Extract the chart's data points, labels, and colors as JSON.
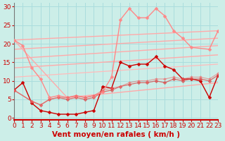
{
  "background_color": "#cceee8",
  "grid_color": "#aadddd",
  "xlabel": "Vent moyen/en rafales ( km/h )",
  "xlabel_color": "#cc0000",
  "xlabel_fontsize": 7.5,
  "tick_color": "#cc0000",
  "tick_fontsize": 6.5,
  "x_ticks": [
    0,
    1,
    2,
    3,
    4,
    5,
    6,
    7,
    8,
    9,
    10,
    11,
    12,
    13,
    14,
    15,
    16,
    17,
    18,
    19,
    20,
    21,
    22,
    23
  ],
  "y_ticks": [
    0,
    5,
    10,
    15,
    20,
    25,
    30
  ],
  "xlim": [
    0,
    23
  ],
  "ylim": [
    -0.5,
    31
  ],
  "series": [
    {
      "comment": "dark red wavy line with markers - main wind series",
      "x": [
        0,
        1,
        2,
        3,
        4,
        5,
        6,
        7,
        8,
        9,
        10,
        11,
        12,
        13,
        14,
        15,
        16,
        17,
        18,
        19,
        20,
        21,
        22,
        23
      ],
      "y": [
        7.5,
        9.5,
        4.0,
        2.0,
        1.5,
        1.0,
        1.0,
        1.0,
        1.5,
        2.0,
        8.5,
        8.0,
        15.0,
        14.0,
        14.5,
        14.5,
        16.5,
        14.0,
        13.0,
        10.5,
        10.5,
        10.0,
        5.5,
        11.5
      ],
      "color": "#cc0000",
      "marker": "D",
      "markersize": 2.5,
      "linewidth": 1.0,
      "alpha": 1.0
    },
    {
      "comment": "medium red - gust line with markers, starts low stays near 5-11",
      "x": [
        0,
        2,
        3,
        4,
        5,
        6,
        7,
        8,
        9,
        10,
        11,
        12,
        13,
        14,
        15,
        16,
        17,
        18,
        19,
        20,
        21,
        22,
        23
      ],
      "y": [
        7.5,
        4.5,
        3.5,
        5.0,
        5.5,
        5.0,
        5.5,
        5.0,
        5.5,
        7.0,
        7.5,
        8.5,
        9.0,
        9.5,
        9.5,
        10.0,
        9.5,
        10.5,
        10.0,
        10.5,
        10.5,
        10.0,
        11.5
      ],
      "color": "#dd4444",
      "marker": "D",
      "markersize": 2.5,
      "linewidth": 1.0,
      "alpha": 0.7
    },
    {
      "comment": "light pink - big spiky line starting at 21 dropping then rising with big peaks",
      "x": [
        0,
        1,
        2,
        3,
        4,
        5,
        6,
        7,
        8,
        9,
        10,
        11,
        12,
        13,
        14,
        15,
        16,
        17,
        18,
        19,
        20,
        22,
        23
      ],
      "y": [
        21.0,
        19.5,
        13.5,
        10.5,
        5.5,
        6.0,
        5.5,
        6.0,
        5.5,
        6.0,
        7.0,
        11.0,
        26.5,
        29.5,
        27.0,
        27.0,
        29.5,
        27.5,
        23.5,
        21.5,
        19.0,
        18.5,
        23.5
      ],
      "color": "#ff8888",
      "marker": "D",
      "markersize": 2.5,
      "linewidth": 1.0,
      "alpha": 1.0
    },
    {
      "comment": "straight diagonal line top-left to lower-right then up - regression line 1",
      "x": [
        0,
        23
      ],
      "y": [
        21.0,
        23.5
      ],
      "color": "#ffaaaa",
      "marker": null,
      "linewidth": 1.0,
      "alpha": 1.0
    },
    {
      "comment": "straight diagonal line 2",
      "x": [
        0,
        23
      ],
      "y": [
        18.5,
        21.5
      ],
      "color": "#ffaaaa",
      "marker": null,
      "linewidth": 1.0,
      "alpha": 1.0
    },
    {
      "comment": "straight diagonal line 3",
      "x": [
        0,
        23
      ],
      "y": [
        16.0,
        19.5
      ],
      "color": "#ffaaaa",
      "marker": null,
      "linewidth": 1.0,
      "alpha": 1.0
    },
    {
      "comment": "straight diagonal line 4",
      "x": [
        0,
        23
      ],
      "y": [
        13.5,
        17.0
      ],
      "color": "#ffaaaa",
      "marker": null,
      "linewidth": 1.0,
      "alpha": 1.0
    },
    {
      "comment": "straight diagonal line 5 - lowest",
      "x": [
        0,
        23
      ],
      "y": [
        11.0,
        14.5
      ],
      "color": "#ffbbbb",
      "marker": null,
      "linewidth": 0.9,
      "alpha": 1.0
    },
    {
      "comment": "converging line from top-left 21 going down-right to ~5-6",
      "x": [
        0,
        6,
        23
      ],
      "y": [
        21.0,
        5.5,
        9.5
      ],
      "color": "#ffaaaa",
      "marker": null,
      "linewidth": 1.0,
      "alpha": 1.0
    },
    {
      "comment": "medium red with small markers - second wind mean series going gently up",
      "x": [
        0,
        2,
        3,
        4,
        5,
        6,
        7,
        8,
        9,
        10,
        11,
        12,
        13,
        14,
        15,
        16,
        17,
        18,
        19,
        20,
        21,
        22,
        23
      ],
      "y": [
        7.5,
        4.5,
        3.5,
        5.0,
        5.5,
        5.5,
        6.0,
        5.5,
        6.0,
        7.5,
        8.0,
        8.5,
        9.5,
        10.0,
        10.0,
        10.5,
        10.5,
        11.0,
        10.5,
        11.0,
        11.0,
        10.5,
        12.0
      ],
      "color": "#ee6666",
      "marker": "D",
      "markersize": 2.0,
      "linewidth": 0.8,
      "alpha": 0.6
    }
  ]
}
